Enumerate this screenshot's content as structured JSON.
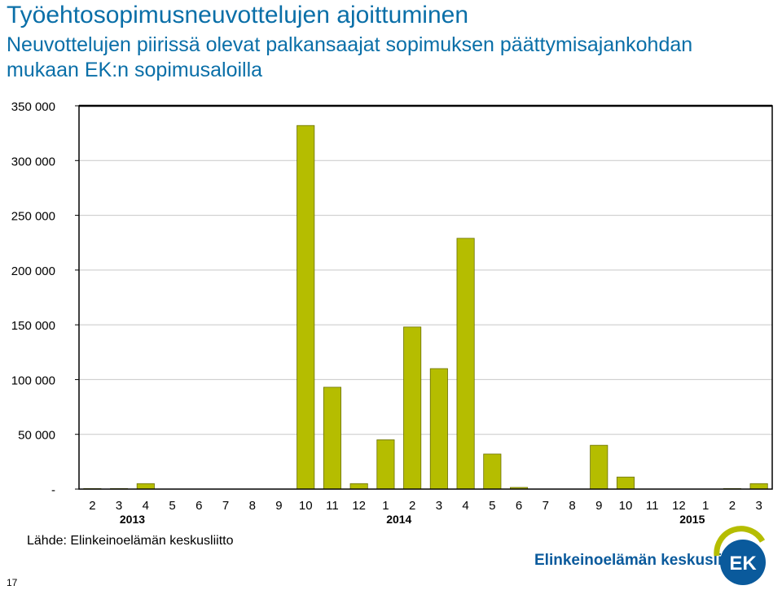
{
  "title": "Työehtosopimusneuvottelujen ajoittuminen",
  "subtitle": "Neuvottelujen piirissä olevat palkansaajat sopimuksen päättymisajankohdan mukaan EK:n sopimusaloilla",
  "source": "Lähde: Elinkeinoelämän keskusliitto",
  "page_number": "17",
  "logo": {
    "text": "Elinkeinoelämän keskusliitto",
    "mark_text": "EK"
  },
  "colors": {
    "bar": "#b5bd00",
    "bar_edge": "#6b7000",
    "title": "#0a6fa8",
    "logo_blue": "#0a5a9c"
  },
  "chart_data": {
    "type": "bar",
    "categories": [
      "2",
      "3",
      "4",
      "5",
      "6",
      "7",
      "8",
      "9",
      "10",
      "11",
      "12",
      "1",
      "2",
      "3",
      "4",
      "5",
      "6",
      "7",
      "8",
      "9",
      "10",
      "11",
      "12",
      "1",
      "2",
      "3"
    ],
    "values": [
      500,
      500,
      5000,
      0,
      0,
      0,
      0,
      0,
      332000,
      93000,
      5000,
      45000,
      148000,
      110000,
      229000,
      32000,
      1500,
      0,
      0,
      40000,
      11000,
      0,
      0,
      0,
      500,
      5000
    ],
    "year_labels": [
      {
        "label": "2013",
        "category_index": 2
      },
      {
        "label": "2014",
        "category_index": 12
      },
      {
        "label": "2015",
        "category_index": 23
      }
    ],
    "ylim": [
      0,
      350000
    ],
    "y_ticks": [
      {
        "value": 350000,
        "label": "350 000"
      },
      {
        "value": 300000,
        "label": "300 000"
      },
      {
        "value": 250000,
        "label": "250 000"
      },
      {
        "value": 200000,
        "label": "200 000"
      },
      {
        "value": 150000,
        "label": "150 000"
      },
      {
        "value": 100000,
        "label": "100 000"
      },
      {
        "value": 50000,
        "label": "50 000"
      },
      {
        "value": 0,
        "label": "-"
      }
    ],
    "grid": true,
    "legend": "none"
  }
}
